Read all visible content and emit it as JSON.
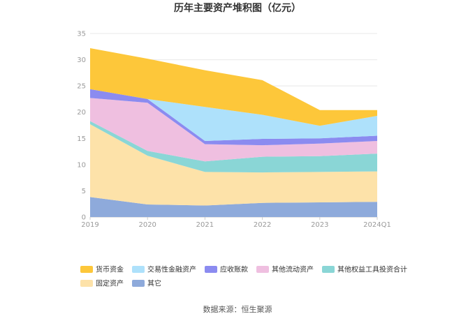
{
  "chart_data": {
    "type": "area",
    "stacked": true,
    "title": "历年主要资产堆积图（亿元）",
    "xlabel": "",
    "ylabel": "",
    "categories": [
      "2019",
      "2020",
      "2021",
      "2022",
      "2023",
      "2024Q1"
    ],
    "ylim": [
      0,
      35
    ],
    "yticks": [
      0,
      5,
      10,
      15,
      20,
      25,
      30,
      35
    ],
    "grid": true,
    "legend_position": "bottom",
    "series": [
      {
        "name": "其它",
        "color": "#8eaadb",
        "values": [
          3.8,
          2.4,
          2.2,
          2.7,
          2.8,
          2.9
        ]
      },
      {
        "name": "固定资产",
        "color": "#fde2a9",
        "values": [
          13.9,
          9.3,
          6.4,
          5.8,
          5.8,
          5.8
        ]
      },
      {
        "name": "其他权益工具投资合计",
        "color": "#8ad6d6",
        "values": [
          0.6,
          0.9,
          2.0,
          3.0,
          3.0,
          3.4
        ]
      },
      {
        "name": "其他流动资产",
        "color": "#efbfe0",
        "values": [
          4.4,
          9.2,
          3.3,
          2.2,
          2.4,
          2.4
        ]
      },
      {
        "name": "应收账款",
        "color": "#8b8bf0",
        "values": [
          1.7,
          0.7,
          0.6,
          1.2,
          1.0,
          1.0
        ]
      },
      {
        "name": "交易性金融资产",
        "color": "#aee1fb",
        "values": [
          0.0,
          0.0,
          6.5,
          4.6,
          2.4,
          3.8
        ]
      },
      {
        "name": "货币资金",
        "color": "#fdc73a",
        "values": [
          7.8,
          7.7,
          7.0,
          6.6,
          3.0,
          1.1
        ]
      }
    ],
    "legend_order": [
      "货币资金",
      "交易性金融资产",
      "应收账款",
      "其他流动资产",
      "其他权益工具投资合计",
      "固定资产",
      "其它"
    ]
  },
  "source": "数据来源：恒生聚源"
}
